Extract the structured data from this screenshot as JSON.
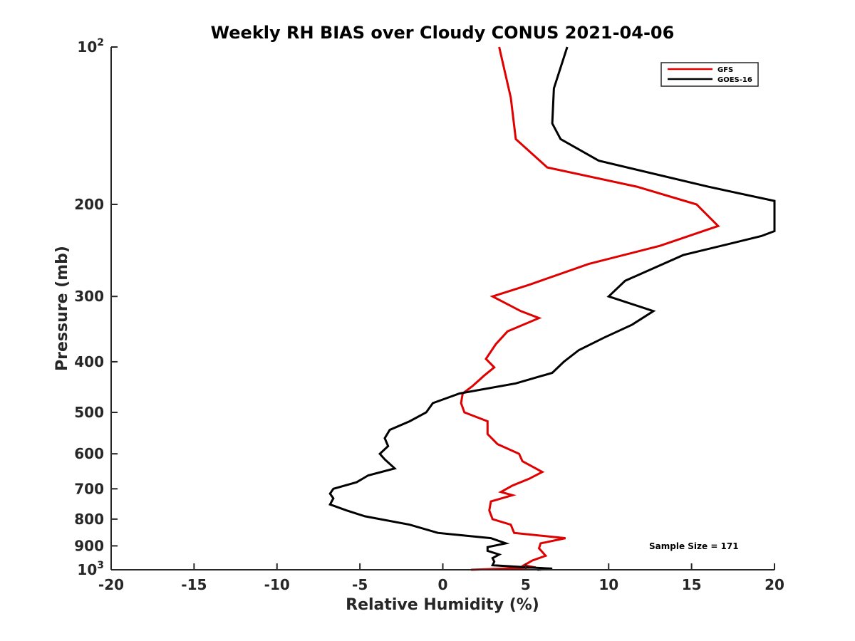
{
  "chart_data": {
    "type": "line",
    "title": "Weekly RH BIAS over Cloudy CONUS 2021-04-06",
    "xlabel": "Relative Humidity (%)",
    "ylabel": "Pressure (mb)",
    "xlim": [
      -20,
      20
    ],
    "ylim": [
      100,
      1000
    ],
    "y_scale": "log",
    "y_reversed": true,
    "x_ticks": [
      -20,
      -15,
      -10,
      -5,
      0,
      5,
      10,
      15,
      20
    ],
    "x_tick_labels": [
      "-20",
      "-15",
      "-10",
      "-5",
      "0",
      "5",
      "10",
      "15",
      "20"
    ],
    "y_ticks": [
      100,
      200,
      300,
      400,
      500,
      600,
      700,
      800,
      900,
      1000
    ],
    "y_tick_labels": [
      {
        "base": "10",
        "sup": "2"
      },
      {
        "base": "200",
        "sup": ""
      },
      {
        "base": "300",
        "sup": ""
      },
      {
        "base": "400",
        "sup": ""
      },
      {
        "base": "500",
        "sup": ""
      },
      {
        "base": "600",
        "sup": ""
      },
      {
        "base": "700",
        "sup": ""
      },
      {
        "base": "800",
        "sup": ""
      },
      {
        "base": "900",
        "sup": ""
      },
      {
        "base": "10",
        "sup": "3"
      }
    ],
    "grid": false,
    "legend_position": "top-right",
    "annotation": "Sample Size = 171",
    "series": [
      {
        "name": "GFS",
        "color": "#e00000",
        "points": [
          [
            3.4,
            100
          ],
          [
            4.1,
            125
          ],
          [
            4.4,
            150
          ],
          [
            6.3,
            170
          ],
          [
            11.7,
            185
          ],
          [
            15.3,
            200
          ],
          [
            16.6,
            220
          ],
          [
            13.1,
            240
          ],
          [
            8.8,
            260
          ],
          [
            5.2,
            285
          ],
          [
            3.0,
            300
          ],
          [
            4.7,
            320
          ],
          [
            5.8,
            330
          ],
          [
            3.9,
            350
          ],
          [
            3.2,
            370
          ],
          [
            2.6,
            395
          ],
          [
            3.1,
            410
          ],
          [
            2.5,
            425
          ],
          [
            1.8,
            445
          ],
          [
            1.2,
            460
          ],
          [
            1.1,
            480
          ],
          [
            1.3,
            500
          ],
          [
            2.7,
            520
          ],
          [
            2.7,
            550
          ],
          [
            3.3,
            575
          ],
          [
            4.6,
            600
          ],
          [
            4.8,
            620
          ],
          [
            6.0,
            650
          ],
          [
            5.2,
            670
          ],
          [
            4.2,
            690
          ],
          [
            3.5,
            710
          ],
          [
            4.2,
            720
          ],
          [
            2.9,
            740
          ],
          [
            2.8,
            770
          ],
          [
            3.0,
            800
          ],
          [
            4.1,
            820
          ],
          [
            4.3,
            850
          ],
          [
            7.4,
            870
          ],
          [
            5.9,
            890
          ],
          [
            5.8,
            910
          ],
          [
            6.2,
            940
          ],
          [
            5.4,
            960
          ],
          [
            4.9,
            980
          ],
          [
            5.6,
            990
          ],
          [
            1.7,
            1000
          ]
        ]
      },
      {
        "name": "GOES-16",
        "color": "#000000",
        "points": [
          [
            7.5,
            100
          ],
          [
            6.7,
            120
          ],
          [
            6.6,
            140
          ],
          [
            7.1,
            150
          ],
          [
            9.4,
            165
          ],
          [
            16.0,
            185
          ],
          [
            20.0,
            197
          ],
          [
            20.0,
            225
          ],
          [
            19.2,
            230
          ],
          [
            14.5,
            250
          ],
          [
            11.0,
            280
          ],
          [
            10.0,
            300
          ],
          [
            12.7,
            320
          ],
          [
            11.4,
            340
          ],
          [
            9.7,
            360
          ],
          [
            8.2,
            380
          ],
          [
            7.3,
            400
          ],
          [
            6.6,
            420
          ],
          [
            4.4,
            440
          ],
          [
            1.0,
            460
          ],
          [
            -0.6,
            480
          ],
          [
            -1.0,
            500
          ],
          [
            -2.0,
            520
          ],
          [
            -3.2,
            540
          ],
          [
            -3.5,
            560
          ],
          [
            -3.3,
            580
          ],
          [
            -3.8,
            600
          ],
          [
            -3.5,
            615
          ],
          [
            -2.9,
            640
          ],
          [
            -4.5,
            660
          ],
          [
            -5.2,
            680
          ],
          [
            -6.6,
            700
          ],
          [
            -6.8,
            715
          ],
          [
            -6.6,
            730
          ],
          [
            -6.8,
            750
          ],
          [
            -5.8,
            770
          ],
          [
            -4.7,
            790
          ],
          [
            -2.0,
            820
          ],
          [
            -0.3,
            850
          ],
          [
            2.9,
            870
          ],
          [
            3.8,
            890
          ],
          [
            2.7,
            905
          ],
          [
            2.7,
            920
          ],
          [
            3.4,
            935
          ],
          [
            3.0,
            950
          ],
          [
            3.1,
            965
          ],
          [
            3.0,
            980
          ],
          [
            5.2,
            990
          ],
          [
            6.6,
            995
          ],
          [
            5.7,
            1000
          ]
        ]
      }
    ]
  }
}
